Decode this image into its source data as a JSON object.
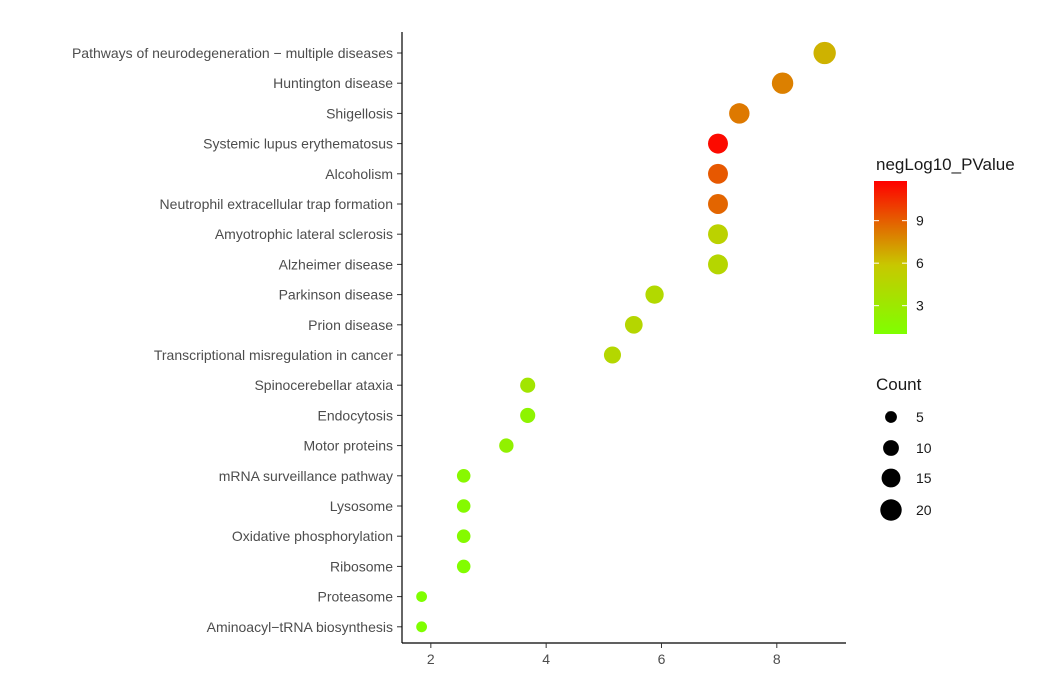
{
  "chart_data": {
    "type": "scatter",
    "categories": [
      "Pathways of neurodegeneration − multiple diseases",
      "Huntington disease",
      "Shigellosis",
      "Systemic lupus erythematosus",
      "Alcoholism",
      "Neutrophil extracellular trap formation",
      "Amyotrophic lateral sclerosis",
      "Alzheimer disease",
      "Parkinson disease",
      "Prion disease",
      "Transcriptional misregulation in cancer",
      "Spinocerebellar ataxia",
      "Endocytosis",
      "Motor proteins",
      "mRNA surveillance pathway",
      "Lysosome",
      "Oxidative phosphorylation",
      "Ribosome",
      "Proteasome",
      "Aminoacyl−tRNA biosynthesis"
    ],
    "points": [
      {
        "term": "Pathways of neurodegeneration − multiple diseases",
        "x": 8.83,
        "count": 22,
        "negLog10_PValue": 6.5
      },
      {
        "term": "Huntington disease",
        "x": 8.1,
        "count": 20,
        "negLog10_PValue": 8.0
      },
      {
        "term": "Shigellosis",
        "x": 7.35,
        "count": 18,
        "negLog10_PValue": 8.2
      },
      {
        "term": "Systemic lupus erythematosus",
        "x": 6.98,
        "count": 17,
        "negLog10_PValue": 11.5
      },
      {
        "term": "Alcoholism",
        "x": 6.98,
        "count": 17,
        "negLog10_PValue": 9.2
      },
      {
        "term": "Neutrophil extracellular trap formation",
        "x": 6.98,
        "count": 17,
        "negLog10_PValue": 8.8
      },
      {
        "term": "Amyotrophic lateral sclerosis",
        "x": 6.98,
        "count": 17,
        "negLog10_PValue": 5.0
      },
      {
        "term": "Alzheimer disease",
        "x": 6.98,
        "count": 17,
        "negLog10_PValue": 4.6
      },
      {
        "term": "Parkinson disease",
        "x": 5.88,
        "count": 14,
        "negLog10_PValue": 4.4
      },
      {
        "term": "Prion disease",
        "x": 5.52,
        "count": 13,
        "negLog10_PValue": 4.6
      },
      {
        "term": "Transcriptional misregulation in cancer",
        "x": 5.15,
        "count": 12,
        "negLog10_PValue": 4.5
      },
      {
        "term": "Spinocerebellar ataxia",
        "x": 3.68,
        "count": 9,
        "negLog10_PValue": 3.3
      },
      {
        "term": "Endocytosis",
        "x": 3.68,
        "count": 9,
        "negLog10_PValue": 2.0
      },
      {
        "term": "Motor proteins",
        "x": 3.31,
        "count": 8,
        "negLog10_PValue": 2.2
      },
      {
        "term": "mRNA surveillance pathway",
        "x": 2.57,
        "count": 7,
        "negLog10_PValue": 1.6
      },
      {
        "term": "Lysosome",
        "x": 2.57,
        "count": 7,
        "negLog10_PValue": 1.4
      },
      {
        "term": "Oxidative phosphorylation",
        "x": 2.57,
        "count": 7,
        "negLog10_PValue": 1.4
      },
      {
        "term": "Ribosome",
        "x": 2.57,
        "count": 7,
        "negLog10_PValue": 1.2
      },
      {
        "term": "Proteasome",
        "x": 1.84,
        "count": 4,
        "negLog10_PValue": 1.0
      },
      {
        "term": "Aminoacyl−tRNA biosynthesis",
        "x": 1.84,
        "count": 4,
        "negLog10_PValue": 1.0
      }
    ],
    "xlim": [
      1.5,
      9.2
    ],
    "x_ticks": [
      "2",
      "4",
      "6",
      "8"
    ],
    "x_tick_values": [
      2,
      4,
      6,
      8
    ],
    "xlabel": "",
    "ylabel": "",
    "grid": false,
    "color_legend": {
      "title": "negLog10_PValue",
      "labels": [
        "9",
        "6",
        "3"
      ],
      "label_values": [
        9,
        6,
        3
      ],
      "range": [
        1.0,
        11.8
      ],
      "low_color": "#7fff00",
      "mid_color": "#c8c800",
      "high_color": "#ff0000"
    },
    "size_legend": {
      "title": "Count",
      "labels": [
        "5",
        "10",
        "15",
        "20"
      ],
      "label_values": [
        5,
        10,
        15,
        20
      ],
      "point_color": "#000000"
    },
    "legend_position": "right"
  }
}
